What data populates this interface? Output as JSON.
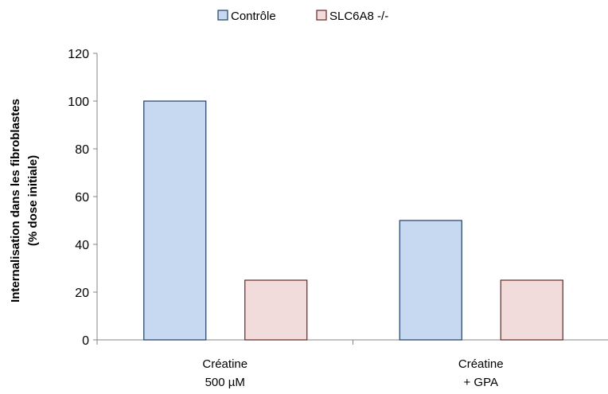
{
  "chart_data": {
    "type": "bar",
    "categories": [
      [
        "Créatine",
        "500 µM"
      ],
      [
        "Créatine",
        "+ GPA"
      ]
    ],
    "series": [
      {
        "name": "Contrôle",
        "values": [
          100,
          50
        ],
        "fill": "#c6d9f1",
        "stroke": "#1f3d63"
      },
      {
        "name": "SLC6A8 -/-",
        "values": [
          25,
          25
        ],
        "fill": "#f2dcdb",
        "stroke": "#632523"
      }
    ],
    "ylabel_lines": [
      "Internalisation dans les fibroblastes",
      "(% dose initiale)"
    ],
    "ylim": [
      0,
      120
    ],
    "yticks": [
      "0",
      "20",
      "40",
      "60",
      "80",
      "100",
      "120"
    ],
    "grid": false,
    "legend_position": "top-center"
  }
}
